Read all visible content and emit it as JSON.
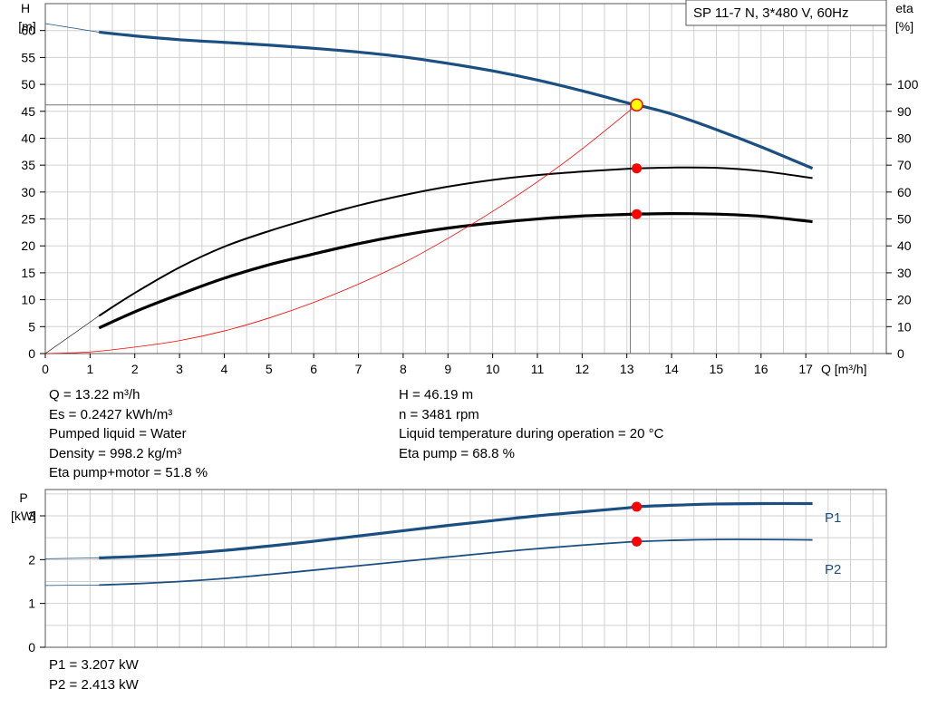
{
  "title_box": "SP 11-7 N, 3*480 V, 60Hz",
  "colors": {
    "curve_blue": "#1b4f82",
    "curve_black": "#000000",
    "system_red": "#ff0000",
    "operating_point_fill": "#ffff00",
    "grid": "#d0d0d0"
  },
  "readout_left": [
    "Q = 13.22 m³/h",
    "Es = 0.2427 kWh/m³",
    "Pumped liquid = Water",
    "Density = 998.2 kg/m³",
    "Eta pump+motor = 51.8 %"
  ],
  "readout_right": [
    "H = 46.19 m",
    "n = 3481 rpm",
    "Liquid temperature during operation = 20 °C",
    "Eta pump = 68.8 %"
  ],
  "readout_power": [
    "P1 = 3.207 kW",
    "P2 = 2.413 kW"
  ],
  "chart_data": [
    {
      "type": "line",
      "panel": "head_efficiency",
      "xlabel": "Q [m³/h]",
      "ylabel_left": [
        "H",
        "[m]"
      ],
      "ylabel_right": [
        "eta",
        "[%]"
      ],
      "xlim": [
        0,
        18.8
      ],
      "ylim_left": [
        0,
        65
      ],
      "ylim_right": [
        0,
        130
      ],
      "x_ticks": [
        0,
        1,
        2,
        3,
        4,
        5,
        6,
        7,
        8,
        9,
        10,
        11,
        12,
        13,
        14,
        15,
        16,
        17
      ],
      "y_ticks_left": [
        0,
        5,
        10,
        15,
        20,
        25,
        30,
        35,
        40,
        45,
        50,
        55,
        60
      ],
      "y_ticks_right": [
        0,
        10,
        20,
        30,
        40,
        50,
        60,
        70,
        80,
        90,
        100
      ],
      "grid": true,
      "series": [
        {
          "key": "head",
          "axis": "left",
          "color": "#1b4f82",
          "width": 3.2,
          "x": [
            1.2,
            2,
            3,
            4,
            5,
            6,
            7,
            8,
            9,
            10,
            11,
            12,
            13,
            13.22,
            14,
            15,
            16,
            17.15
          ],
          "y": [
            59.7,
            59.0,
            58.3,
            57.8,
            57.3,
            56.7,
            56.0,
            55.1,
            53.9,
            52.5,
            50.8,
            48.8,
            46.6,
            46.19,
            44.5,
            41.6,
            38.4,
            34.4
          ]
        },
        {
          "key": "head_extension",
          "axis": "left",
          "color": "#1b4f82",
          "width": 0.8,
          "x": [
            0,
            1.2
          ],
          "y": [
            61.3,
            59.7
          ]
        },
        {
          "key": "eta_pump",
          "axis": "right",
          "color": "#000000",
          "width": 2.0,
          "x": [
            1.2,
            2,
            3,
            4,
            5,
            6,
            7,
            8,
            9,
            10,
            11,
            12,
            13,
            13.22,
            14,
            15,
            16,
            17.15
          ],
          "y": [
            14,
            22.5,
            32,
            39.7,
            45.5,
            50.5,
            55,
            58.8,
            62,
            64.5,
            66.3,
            67.6,
            68.6,
            68.8,
            69.1,
            69.0,
            67.8,
            65.2
          ]
        },
        {
          "key": "eta_pump_motor",
          "axis": "right",
          "color": "#000000",
          "width": 3.2,
          "x": [
            1.2,
            2,
            3,
            4,
            5,
            6,
            7,
            8,
            9,
            10,
            11,
            12,
            13,
            13.22,
            14,
            15,
            16,
            17.15
          ],
          "y": [
            9.5,
            15.5,
            22,
            28,
            33,
            37,
            40.8,
            44,
            46.6,
            48.5,
            50,
            51.1,
            51.7,
            51.8,
            52,
            51.8,
            51.0,
            49.0
          ]
        },
        {
          "key": "eta_extension",
          "axis": "right",
          "color": "#000000",
          "width": 0.6,
          "x": [
            0,
            1.2
          ],
          "y": [
            0,
            14
          ]
        },
        {
          "key": "system_curve",
          "axis": "left",
          "color": "#ff0000",
          "width": 0.8,
          "x": [
            0,
            1,
            2,
            3,
            4,
            5,
            6,
            7,
            8,
            9,
            10,
            11,
            12,
            13.22
          ],
          "y": [
            0,
            0.3,
            1.2,
            2.4,
            4.2,
            6.6,
            9.5,
            12.9,
            16.8,
            21.4,
            26.4,
            31.9,
            38.0,
            46.19
          ]
        }
      ],
      "operating_point": {
        "x": 13.22,
        "h": 46.19,
        "eta_pump": 68.8,
        "eta_pump_motor": 51.8
      }
    },
    {
      "type": "line",
      "panel": "power",
      "xlabel": "",
      "ylabel_left": [
        "P",
        "[kW]"
      ],
      "xlim": [
        0,
        18.8
      ],
      "ylim": [
        0,
        3.6
      ],
      "y_ticks": [
        0,
        1,
        2,
        3
      ],
      "grid": true,
      "series": [
        {
          "key": "P1",
          "name": "P1",
          "color": "#1b4f82",
          "width": 3.2,
          "x": [
            1.2,
            2,
            3,
            4,
            5,
            6,
            7,
            8,
            9,
            10,
            11,
            12,
            13,
            13.22,
            14,
            15,
            16,
            17.15
          ],
          "y": [
            2.04,
            2.07,
            2.13,
            2.21,
            2.31,
            2.42,
            2.54,
            2.66,
            2.78,
            2.89,
            3.0,
            3.09,
            3.18,
            3.207,
            3.24,
            3.27,
            3.28,
            3.28
          ]
        },
        {
          "key": "P1_extension",
          "color": "#1b4f82",
          "width": 0.8,
          "x": [
            0,
            1.2
          ],
          "y": [
            2.02,
            2.04
          ]
        },
        {
          "key": "P2",
          "name": "P2",
          "color": "#1b4f82",
          "width": 1.8,
          "x": [
            1.2,
            2,
            3,
            4,
            5,
            6,
            7,
            8,
            9,
            10,
            11,
            12,
            13,
            13.22,
            14,
            15,
            16,
            17.15
          ],
          "y": [
            1.42,
            1.45,
            1.5,
            1.57,
            1.66,
            1.76,
            1.86,
            1.96,
            2.06,
            2.16,
            2.25,
            2.33,
            2.4,
            2.413,
            2.44,
            2.46,
            2.46,
            2.45
          ]
        },
        {
          "key": "P2_extension",
          "color": "#1b4f82",
          "width": 0.8,
          "x": [
            0,
            1.2
          ],
          "y": [
            1.41,
            1.42
          ]
        }
      ],
      "operating_point": {
        "x": 13.22,
        "P1": 3.207,
        "P2": 2.413
      }
    }
  ]
}
